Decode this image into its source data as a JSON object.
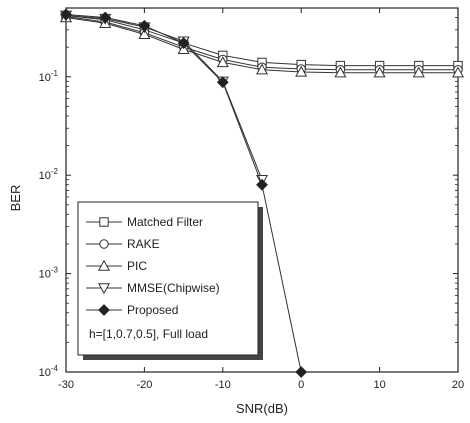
{
  "chart_data": {
    "type": "line",
    "xlabel": "SNR(dB)",
    "ylabel": "BER",
    "xlim": [
      -30,
      20
    ],
    "ylim": [
      0.0001,
      0.5
    ],
    "yscale": "log",
    "xticks": [
      -30,
      -20,
      -10,
      0,
      10,
      20
    ],
    "yticks": [
      {
        "value": 0.0001,
        "base": "10",
        "exp": "-4"
      },
      {
        "value": 0.001,
        "base": "10",
        "exp": "-3"
      },
      {
        "value": 0.01,
        "base": "10",
        "exp": "-2"
      },
      {
        "value": 0.1,
        "base": "10",
        "exp": "-1"
      }
    ],
    "legend_position": "bottom-left",
    "legend_note": "h=[1,0.7,0.5], Full load",
    "series": [
      {
        "name": "Matched Filter",
        "marker": "square",
        "x": [
          -30,
          -25,
          -20,
          -15,
          -10,
          -5,
          0,
          5,
          10,
          15,
          20
        ],
        "y": [
          0.42,
          0.38,
          0.3,
          0.22,
          0.165,
          0.14,
          0.133,
          0.13,
          0.13,
          0.13,
          0.13
        ]
      },
      {
        "name": "RAKE",
        "marker": "circle",
        "x": [
          -30,
          -25,
          -20,
          -15,
          -10,
          -5,
          0,
          5,
          10,
          15,
          20
        ],
        "y": [
          0.41,
          0.36,
          0.28,
          0.2,
          0.15,
          0.125,
          0.12,
          0.118,
          0.118,
          0.118,
          0.118
        ]
      },
      {
        "name": "PIC",
        "marker": "triangle-up",
        "x": [
          -30,
          -25,
          -20,
          -15,
          -10,
          -5,
          0,
          5,
          10,
          15,
          20
        ],
        "y": [
          0.4,
          0.35,
          0.27,
          0.19,
          0.14,
          0.118,
          0.112,
          0.11,
          0.11,
          0.11,
          0.11
        ]
      },
      {
        "name": "MMSE(Chipwise)",
        "marker": "triangle-down",
        "x": [
          -30,
          -25,
          -20,
          -15,
          -10,
          -5
        ],
        "y": [
          0.42,
          0.39,
          0.32,
          0.23,
          0.09,
          0.009
        ]
      },
      {
        "name": "Proposed",
        "marker": "diamond-filled",
        "x": [
          -30,
          -25,
          -20,
          -15,
          -10,
          -5,
          0
        ],
        "y": [
          0.43,
          0.4,
          0.33,
          0.22,
          0.088,
          0.008,
          0.0001
        ]
      }
    ]
  }
}
